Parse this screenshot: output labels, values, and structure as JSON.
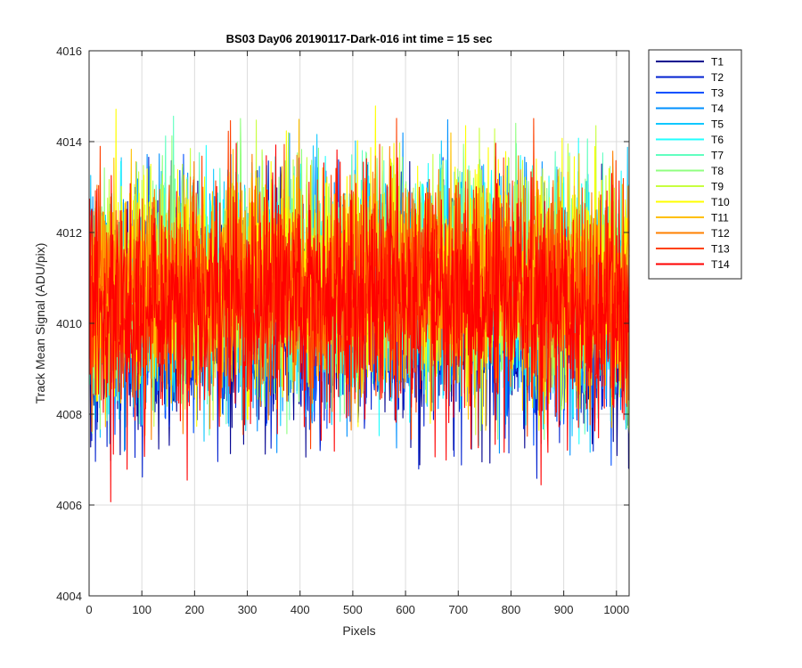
{
  "chart_data": {
    "type": "line",
    "title": "BS03 Day06 20190117-Dark-016 int time = 15 sec",
    "xlabel": "Pixels",
    "ylabel": "Track Mean Signal (ADU/pix)",
    "xlim": [
      0,
      1024
    ],
    "ylim": [
      4004,
      4016
    ],
    "xticks": [
      0,
      100,
      200,
      300,
      400,
      500,
      600,
      700,
      800,
      900,
      1000
    ],
    "yticks": [
      4004,
      4006,
      4008,
      4010,
      4012,
      4014,
      4016
    ],
    "grid": true,
    "legend_position": "outside-top-right",
    "x_points": 1024,
    "series": [
      {
        "name": "T1",
        "color": "#00008f",
        "approx_mean": 4010.0,
        "approx_min": 4005.7,
        "approx_max": 4013.6
      },
      {
        "name": "T2",
        "color": "#0020d0",
        "approx_mean": 4010.1,
        "approx_min": 4006.3,
        "approx_max": 4013.8
      },
      {
        "name": "T3",
        "color": "#0050ff",
        "approx_mean": 4010.3,
        "approx_min": 4006.6,
        "approx_max": 4014.0
      },
      {
        "name": "T4",
        "color": "#0090ff",
        "approx_mean": 4010.5,
        "approx_min": 4006.9,
        "approx_max": 4014.5
      },
      {
        "name": "T5",
        "color": "#10c8ff",
        "approx_mean": 4010.6,
        "approx_min": 4007.1,
        "approx_max": 4014.8
      },
      {
        "name": "T6",
        "color": "#20ffff",
        "approx_mean": 4010.7,
        "approx_min": 4007.2,
        "approx_max": 4015.0
      },
      {
        "name": "T7",
        "color": "#60ffc0",
        "approx_mean": 4010.8,
        "approx_min": 4007.3,
        "approx_max": 4015.1
      },
      {
        "name": "T8",
        "color": "#90ff80",
        "approx_mean": 4010.9,
        "approx_min": 4007.4,
        "approx_max": 4015.2
      },
      {
        "name": "T9",
        "color": "#c8ff40",
        "approx_mean": 4010.9,
        "approx_min": 4007.5,
        "approx_max": 4015.0
      },
      {
        "name": "T10",
        "color": "#ffff00",
        "approx_mean": 4010.9,
        "approx_min": 4007.6,
        "approx_max": 4014.9
      },
      {
        "name": "T11",
        "color": "#ffc000",
        "approx_mean": 4010.8,
        "approx_min": 4007.5,
        "approx_max": 4014.8
      },
      {
        "name": "T12",
        "color": "#ff8000",
        "approx_mean": 4010.8,
        "approx_min": 4007.4,
        "approx_max": 4014.7
      },
      {
        "name": "T13",
        "color": "#ff4000",
        "approx_mean": 4010.7,
        "approx_min": 4007.0,
        "approx_max": 4014.6
      },
      {
        "name": "T14",
        "color": "#ff0000",
        "approx_mean": 4010.4,
        "approx_min": 4006.0,
        "approx_max": 4014.3
      }
    ]
  }
}
